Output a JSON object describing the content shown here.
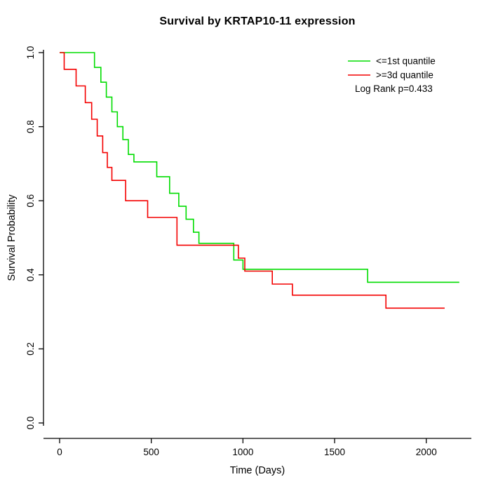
{
  "chart_data": {
    "type": "line",
    "subtype": "kaplan-meier-step",
    "title": "Survival by KRTAP10-11 expression",
    "xlabel": "Time (Days)",
    "ylabel": "Survival Probability",
    "xlim": [
      0,
      2200
    ],
    "ylim": [
      0,
      1
    ],
    "x_ticks": [
      0,
      500,
      1000,
      1500,
      2000
    ],
    "y_ticks": [
      0.0,
      0.2,
      0.4,
      0.6,
      0.8,
      1.0
    ],
    "grid": false,
    "legend_position": "top-right",
    "annotation": "Log Rank p=0.433",
    "axis_color": "#000000",
    "series": [
      {
        "name": "<=1st quantile",
        "color": "#00dd00",
        "end_time": 2180,
        "step_points": [
          [
            0,
            1.0
          ],
          [
            190,
            0.96
          ],
          [
            225,
            0.92
          ],
          [
            255,
            0.88
          ],
          [
            285,
            0.84
          ],
          [
            315,
            0.8
          ],
          [
            345,
            0.765
          ],
          [
            375,
            0.725
          ],
          [
            405,
            0.705
          ],
          [
            530,
            0.665
          ],
          [
            600,
            0.62
          ],
          [
            650,
            0.585
          ],
          [
            690,
            0.55
          ],
          [
            730,
            0.515
          ],
          [
            760,
            0.485
          ],
          [
            950,
            0.44
          ],
          [
            1000,
            0.415
          ],
          [
            1680,
            0.38
          ]
        ]
      },
      {
        "name": ">=3d quantile",
        "color": "#f40000",
        "end_time": 2100,
        "step_points": [
          [
            0,
            1.0
          ],
          [
            25,
            0.955
          ],
          [
            90,
            0.91
          ],
          [
            140,
            0.865
          ],
          [
            175,
            0.82
          ],
          [
            205,
            0.775
          ],
          [
            235,
            0.73
          ],
          [
            260,
            0.69
          ],
          [
            285,
            0.655
          ],
          [
            360,
            0.6
          ],
          [
            480,
            0.555
          ],
          [
            640,
            0.48
          ],
          [
            975,
            0.445
          ],
          [
            1010,
            0.41
          ],
          [
            1160,
            0.375
          ],
          [
            1270,
            0.345
          ],
          [
            1780,
            0.31
          ]
        ]
      }
    ]
  }
}
